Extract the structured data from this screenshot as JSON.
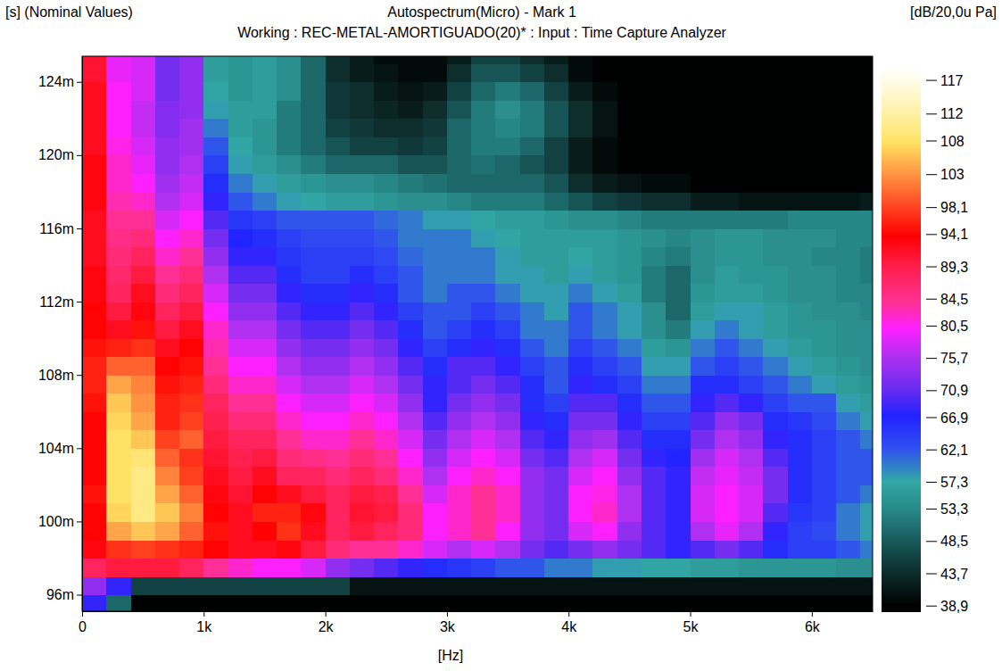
{
  "chart_data": {
    "type": "heatmap",
    "title": "Autospectrum(Micro) - Mark 1",
    "subtitle": "Working : REC-METAL-AMORTIGUADO(20)* : Input : Time Capture Analyzer",
    "y_label": "[s] (Nominal Values)",
    "x_label": "[Hz]",
    "colorbar_label": "[dB/20,0u Pa]",
    "xlim": [
      0,
      6500
    ],
    "ylim": [
      0.0951,
      0.1254
    ],
    "xticks": [
      0,
      {
        "value": 1000,
        "label": "1k"
      },
      {
        "value": 2000,
        "label": "2k"
      },
      {
        "value": 3000,
        "label": "3k"
      },
      {
        "value": 4000,
        "label": "4k"
      },
      {
        "value": 5000,
        "label": "5k"
      },
      {
        "value": 6000,
        "label": "6k"
      }
    ],
    "yticks": [
      {
        "value": 0.096,
        "label": "96m"
      },
      {
        "value": 0.1,
        "label": "100m"
      },
      {
        "value": 0.104,
        "label": "104m"
      },
      {
        "value": 0.108,
        "label": "108m"
      },
      {
        "value": 0.112,
        "label": "112m"
      },
      {
        "value": 0.116,
        "label": "116m"
      },
      {
        "value": 0.12,
        "label": "120m"
      },
      {
        "value": 0.124,
        "label": "124m"
      }
    ],
    "colorbar_range": [
      38,
      119
    ],
    "colorbar_ticks": [
      117,
      112,
      108,
      103,
      {
        "value": 98.1,
        "label": "98,1"
      },
      {
        "value": 94.1,
        "label": "94,1"
      },
      {
        "value": 89.3,
        "label": "89,3"
      },
      {
        "value": 84.5,
        "label": "84,5"
      },
      {
        "value": 80.5,
        "label": "80,5"
      },
      {
        "value": 75.7,
        "label": "75,7"
      },
      {
        "value": 70.9,
        "label": "70,9"
      },
      {
        "value": 66.9,
        "label": "66,9"
      },
      {
        "value": 62.1,
        "label": "62,1"
      },
      {
        "value": 57.3,
        "label": "57,3"
      },
      {
        "value": 53.3,
        "label": "53,3"
      },
      {
        "value": 48.5,
        "label": "48,5"
      },
      {
        "value": 43.7,
        "label": "43,7"
      },
      {
        "value": 38.9,
        "label": "38,9"
      }
    ],
    "x_bins": [
      0,
      200,
      400,
      600,
      800,
      1000,
      1200,
      1400,
      1600,
      1800,
      2000,
      2200,
      2400,
      2600,
      2800,
      3000,
      3200,
      3400,
      3600,
      3800,
      4000,
      4200,
      4400,
      4600,
      4800,
      5000,
      5200,
      5400,
      5600,
      5800,
      6000,
      6200,
      6400,
      6600
    ],
    "y_bins": [
      0.095,
      0.096,
      0.097,
      0.098,
      0.099,
      0.1,
      0.101,
      0.102,
      0.103,
      0.104,
      0.105,
      0.106,
      0.107,
      0.108,
      0.109,
      0.11,
      0.111,
      0.112,
      0.113,
      0.114,
      0.115,
      0.116,
      0.117,
      0.118,
      0.119,
      0.12,
      0.121,
      0.122,
      0.123,
      0.124,
      0.125,
      0.126
    ],
    "cells": [
      [
        68,
        50,
        39,
        39,
        39,
        39,
        39,
        39,
        39,
        39,
        39,
        39,
        39,
        39,
        39,
        39,
        39,
        39,
        39,
        39,
        39,
        39,
        39,
        39,
        39,
        39,
        39,
        39,
        39,
        39,
        39,
        39,
        39
      ],
      [
        74,
        68,
        46,
        46,
        46,
        46,
        46,
        46,
        46,
        46,
        46,
        41,
        41,
        41,
        41,
        41,
        41,
        41,
        41,
        41,
        41,
        41,
        41,
        41,
        41,
        41,
        41,
        41,
        41,
        41,
        41,
        41,
        41
      ],
      [
        88,
        90,
        90,
        90,
        88,
        84,
        82,
        80,
        80,
        78,
        74,
        72,
        70,
        68,
        66,
        65,
        64,
        62,
        62,
        60,
        60,
        58,
        58,
        57,
        57,
        56,
        56,
        55,
        55,
        55,
        55,
        54,
        54
      ],
      [
        93,
        97,
        98,
        97,
        96,
        94,
        92,
        92,
        93,
        90,
        86,
        84,
        84,
        82,
        78,
        76,
        78,
        76,
        72,
        70,
        72,
        74,
        72,
        70,
        68,
        70,
        72,
        70,
        66,
        64,
        64,
        62,
        60
      ],
      [
        94,
        104,
        106,
        104,
        100,
        95,
        92,
        94,
        97,
        92,
        88,
        90,
        88,
        86,
        80,
        82,
        84,
        80,
        74,
        72,
        78,
        80,
        74,
        70,
        68,
        76,
        79,
        76,
        68,
        64,
        63,
        60,
        58
      ],
      [
        94,
        107,
        110,
        106,
        102,
        94,
        92,
        96,
        96,
        93,
        88,
        91,
        90,
        86,
        80,
        82,
        84,
        82,
        74,
        72,
        80,
        82,
        76,
        70,
        68,
        78,
        80,
        78,
        70,
        65,
        64,
        60,
        58
      ],
      [
        95,
        108,
        110,
        104,
        100,
        93,
        91,
        94,
        92,
        90,
        88,
        90,
        89,
        84,
        78,
        82,
        84,
        82,
        74,
        72,
        80,
        81,
        76,
        70,
        68,
        78,
        80,
        78,
        72,
        66,
        64,
        62,
        60
      ],
      [
        94,
        108,
        110,
        102,
        98,
        92,
        90,
        92,
        88,
        88,
        86,
        88,
        86,
        82,
        76,
        80,
        82,
        80,
        74,
        72,
        78,
        80,
        74,
        70,
        68,
        77,
        79,
        77,
        72,
        66,
        64,
        62,
        62
      ],
      [
        94,
        108,
        109,
        100,
        97,
        91,
        89,
        90,
        86,
        85,
        84,
        86,
        84,
        80,
        74,
        78,
        80,
        78,
        72,
        70,
        76,
        78,
        72,
        68,
        67,
        75,
        78,
        76,
        70,
        66,
        64,
        62,
        62
      ],
      [
        94,
        108,
        106,
        98,
        100,
        90,
        88,
        88,
        84,
        82,
        82,
        84,
        82,
        78,
        72,
        76,
        78,
        76,
        70,
        68,
        74,
        75,
        70,
        66,
        66,
        72,
        76,
        74,
        68,
        66,
        64,
        62,
        60
      ],
      [
        94,
        107,
        104,
        96,
        98,
        89,
        86,
        86,
        82,
        80,
        80,
        82,
        80,
        76,
        70,
        74,
        76,
        74,
        68,
        66,
        72,
        72,
        68,
        64,
        64,
        70,
        74,
        72,
        66,
        65,
        63,
        60,
        58
      ],
      [
        95,
        106,
        103,
        96,
        97,
        88,
        84,
        84,
        80,
        78,
        78,
        80,
        78,
        74,
        68,
        72,
        74,
        72,
        66,
        64,
        70,
        70,
        66,
        62,
        62,
        68,
        70,
        68,
        64,
        62,
        62,
        58,
        56
      ],
      [
        96,
        104,
        102,
        95,
        96,
        86,
        82,
        82,
        78,
        76,
        76,
        78,
        76,
        72,
        68,
        70,
        72,
        70,
        66,
        62,
        68,
        66,
        64,
        60,
        60,
        66,
        66,
        64,
        62,
        60,
        58,
        56,
        55
      ],
      [
        96,
        100,
        100,
        94,
        95,
        84,
        80,
        80,
        76,
        74,
        74,
        76,
        74,
        70,
        66,
        70,
        70,
        68,
        64,
        62,
        66,
        64,
        62,
        58,
        58,
        62,
        64,
        62,
        60,
        58,
        56,
        55,
        54
      ],
      [
        95,
        96,
        97,
        92,
        94,
        83,
        78,
        78,
        74,
        72,
        72,
        74,
        72,
        68,
        64,
        66,
        68,
        66,
        62,
        60,
        64,
        62,
        60,
        56,
        55,
        60,
        62,
        60,
        58,
        56,
        55,
        54,
        54
      ],
      [
        94,
        92,
        95,
        90,
        92,
        82,
        76,
        76,
        72,
        70,
        70,
        72,
        70,
        66,
        62,
        64,
        66,
        64,
        60,
        60,
        62,
        60,
        58,
        54,
        52,
        58,
        60,
        58,
        56,
        55,
        55,
        54,
        54
      ],
      [
        94,
        90,
        93,
        88,
        90,
        80,
        74,
        74,
        70,
        68,
        68,
        70,
        68,
        64,
        62,
        62,
        64,
        62,
        60,
        58,
        62,
        60,
        58,
        54,
        50,
        56,
        58,
        58,
        56,
        55,
        54,
        54,
        53
      ],
      [
        93,
        88,
        92,
        86,
        88,
        78,
        72,
        72,
        68,
        66,
        66,
        68,
        66,
        62,
        60,
        62,
        62,
        60,
        58,
        58,
        60,
        58,
        56,
        52,
        50,
        55,
        56,
        56,
        55,
        54,
        54,
        53,
        53
      ],
      [
        93,
        87,
        90,
        84,
        86,
        76,
        70,
        70,
        66,
        64,
        64,
        66,
        64,
        62,
        60,
        60,
        60,
        58,
        58,
        56,
        58,
        56,
        55,
        52,
        50,
        54,
        56,
        55,
        55,
        54,
        54,
        53,
        52
      ],
      [
        92,
        86,
        88,
        82,
        84,
        74,
        68,
        68,
        65,
        64,
        64,
        64,
        63,
        61,
        60,
        60,
        60,
        58,
        56,
        56,
        57,
        56,
        55,
        53,
        52,
        54,
        55,
        55,
        54,
        54,
        53,
        53,
        52
      ],
      [
        92,
        85,
        86,
        80,
        82,
        72,
        67,
        66,
        64,
        63,
        63,
        63,
        62,
        60,
        60,
        60,
        58,
        57,
        56,
        56,
        56,
        56,
        55,
        54,
        53,
        54,
        55,
        55,
        54,
        54,
        54,
        53,
        53
      ],
      [
        92,
        84,
        84,
        78,
        80,
        70,
        65,
        64,
        62,
        62,
        62,
        62,
        61,
        60,
        58,
        58,
        57,
        56,
        56,
        55,
        54,
        54,
        53,
        52,
        52,
        52,
        52,
        52,
        52,
        53,
        53,
        53,
        53
      ],
      [
        93,
        83,
        82,
        76,
        78,
        68,
        62,
        60,
        58,
        57,
        56,
        56,
        55,
        54,
        54,
        53,
        52,
        52,
        52,
        50,
        48,
        46,
        45,
        44,
        44,
        42,
        42,
        41,
        41,
        41,
        41,
        41,
        42
      ],
      [
        93,
        82,
        80,
        75,
        77,
        66,
        60,
        58,
        56,
        55,
        54,
        54,
        53,
        52,
        51,
        50,
        50,
        50,
        50,
        48,
        44,
        42,
        41,
        40,
        40,
        39,
        39,
        39,
        39,
        39,
        39,
        39,
        39
      ],
      [
        93,
        82,
        79,
        74,
        76,
        64,
        58,
        56,
        54,
        52,
        50,
        50,
        50,
        48,
        48,
        50,
        51,
        50,
        48,
        46,
        42,
        40,
        39,
        39,
        39,
        39,
        39,
        39,
        39,
        39,
        39,
        39,
        39
      ],
      [
        92,
        81,
        78,
        74,
        75,
        62,
        57,
        55,
        52,
        50,
        48,
        46,
        46,
        45,
        46,
        50,
        52,
        52,
        50,
        46,
        42,
        40,
        39,
        39,
        39,
        39,
        39,
        39,
        39,
        39,
        39,
        39,
        39
      ],
      [
        92,
        80,
        77,
        73,
        75,
        60,
        56,
        55,
        52,
        50,
        46,
        45,
        44,
        44,
        45,
        50,
        52,
        53,
        52,
        48,
        44,
        41,
        39,
        39,
        39,
        39,
        39,
        39,
        39,
        39,
        39,
        39,
        39
      ],
      [
        92,
        80,
        77,
        73,
        74,
        58,
        56,
        56,
        52,
        50,
        45,
        44,
        43,
        42,
        44,
        48,
        52,
        54,
        52,
        48,
        44,
        41,
        39,
        39,
        39,
        39,
        39,
        39,
        39,
        39,
        39,
        39,
        39
      ],
      [
        92,
        80,
        78,
        72,
        74,
        57,
        55,
        56,
        54,
        50,
        45,
        44,
        42,
        41,
        42,
        46,
        50,
        52,
        50,
        46,
        42,
        40,
        39,
        39,
        39,
        39,
        39,
        39,
        39,
        39,
        39,
        39,
        39
      ],
      [
        91,
        79,
        78,
        72,
        74,
        56,
        55,
        56,
        54,
        50,
        44,
        42,
        41,
        40,
        40,
        44,
        48,
        48,
        46,
        44,
        40,
        39,
        39,
        39,
        39,
        39,
        39,
        39,
        39,
        39,
        39,
        39,
        39
      ],
      [
        91,
        79,
        78,
        72,
        74,
        56,
        55,
        56,
        54,
        50,
        44,
        42,
        40,
        40,
        40,
        42,
        46,
        46,
        44,
        42,
        40,
        39,
        39,
        39,
        39,
        39,
        39,
        39,
        39,
        39,
        39,
        39,
        39
      ]
    ]
  }
}
